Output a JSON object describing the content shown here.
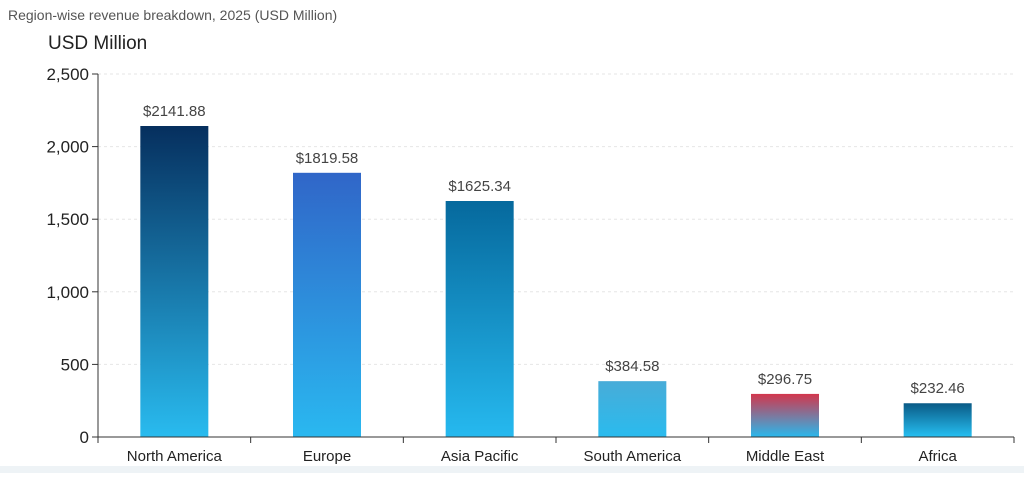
{
  "caption": "Region-wise revenue breakdown, 2025 (USD Million)",
  "chart_data": {
    "type": "bar",
    "title": "",
    "ylabel": "USD Million",
    "xlabel": "",
    "ylim": [
      0,
      2500
    ],
    "yticks": [
      0,
      500,
      1000,
      1500,
      2000,
      2500
    ],
    "ytick_labels": [
      "0",
      "500",
      "1,000",
      "1,500",
      "2,000",
      "2,500"
    ],
    "grid": "horizontal",
    "categories": [
      "North America",
      "Europe",
      "Asia Pacific",
      "South America",
      "Middle East",
      "Africa"
    ],
    "values": [
      2141.88,
      1819.58,
      1625.34,
      384.58,
      296.75,
      232.46
    ],
    "data_labels": [
      "$2141.88",
      "$1819.58",
      "$1625.34",
      "$384.58",
      "$296.75",
      "$232.46"
    ],
    "bar_colors": [
      [
        "#062f5e",
        "#29bbef"
      ],
      [
        "#3066c8",
        "#2ab8f0"
      ],
      [
        "#06699d",
        "#26b9ef"
      ],
      [
        "#48acd8",
        "#2abbee"
      ],
      [
        "#d2364d",
        "#29b9ed"
      ],
      [
        "#0a5a86",
        "#26c0f2"
      ]
    ]
  }
}
